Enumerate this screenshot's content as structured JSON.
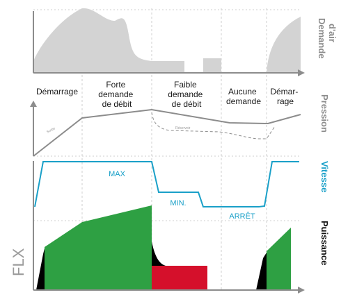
{
  "phases": {
    "startup": [
      "Démarrage"
    ],
    "high_demand": [
      "Forte",
      "demande",
      "de débit"
    ],
    "low_demand": [
      "Faible",
      "demande",
      "de débit"
    ],
    "no_demand": [
      "Aucune",
      "demande"
    ],
    "restart": [
      "Démar-",
      "rage"
    ]
  },
  "row_labels": {
    "air_demand": [
      "Demande",
      "d'air"
    ],
    "pressure": "Pression",
    "speed": "Vitesse",
    "power": "Puissance"
  },
  "annotations": {
    "max": "MAX",
    "min": "MIN.",
    "stop": "ARRÊT",
    "pressure_line_tag": "Sortie",
    "pressure_dashed_tag": "Réservoir"
  },
  "logo": "FLX",
  "colors": {
    "air_fill": "#d3d3d3",
    "axis": "#8c8c8c",
    "pressure": "#8c8c8c",
    "speed": "#1aa0c8",
    "power_green": "#2ea043",
    "power_red": "#d5102b",
    "power_black": "#000000",
    "label_pressure": "#8c8c8c",
    "label_speed": "#1aa0c8",
    "label_power": "#111111"
  }
}
